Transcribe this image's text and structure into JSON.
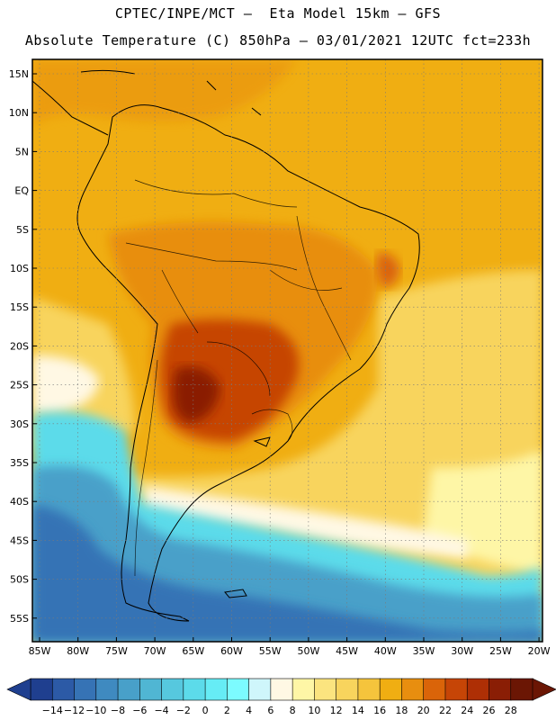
{
  "header": {
    "line1": "CPTEC/INPE/MCT –  Eta Model 15km – GFS",
    "line2": "Absolute Temperature (C) 850hPa – 03/01/2021 12UTC fct=233h"
  },
  "axes": {
    "lat_labels": [
      "15N",
      "10N",
      "5N",
      "EQ",
      "5S",
      "10S",
      "15S",
      "20S",
      "25S",
      "30S",
      "35S",
      "40S",
      "45S",
      "50S",
      "55S"
    ],
    "lon_labels": [
      "85W",
      "80W",
      "75W",
      "70W",
      "65W",
      "60W",
      "55W",
      "50W",
      "45W",
      "40W",
      "35W",
      "30W",
      "25W",
      "20W"
    ]
  },
  "colorbar": {
    "labels": [
      "-14",
      "-12",
      "-10",
      "-8",
      "-6",
      "-4",
      "-2",
      "0",
      "2",
      "4",
      "6",
      "8",
      "10",
      "12",
      "14",
      "16",
      "18",
      "20",
      "22",
      "24",
      "26",
      "28"
    ],
    "colors": [
      "#1f3f8f",
      "#2c5aa6",
      "#3673b5",
      "#3f8ac0",
      "#48a0c9",
      "#50b6d3",
      "#56c8de",
      "#5cdbea",
      "#66ecf5",
      "#7cfbff",
      "#cff6fb",
      "#fff8e4",
      "#fef6a6",
      "#fbe47f",
      "#f8d45d",
      "#f5c43c",
      "#f0ae12",
      "#e88e0f",
      "#da6409",
      "#c64506",
      "#ae2f05",
      "#8a1e05",
      "#6b1604"
    ]
  },
  "field_colors": {
    "hot": "#6b1604",
    "warm": "#c64506",
    "orange": "#f0ae12",
    "yellow": "#f8d45d",
    "cream": "#fff8e4",
    "cyan": "#5cdbea",
    "blue": "#3673b5"
  }
}
